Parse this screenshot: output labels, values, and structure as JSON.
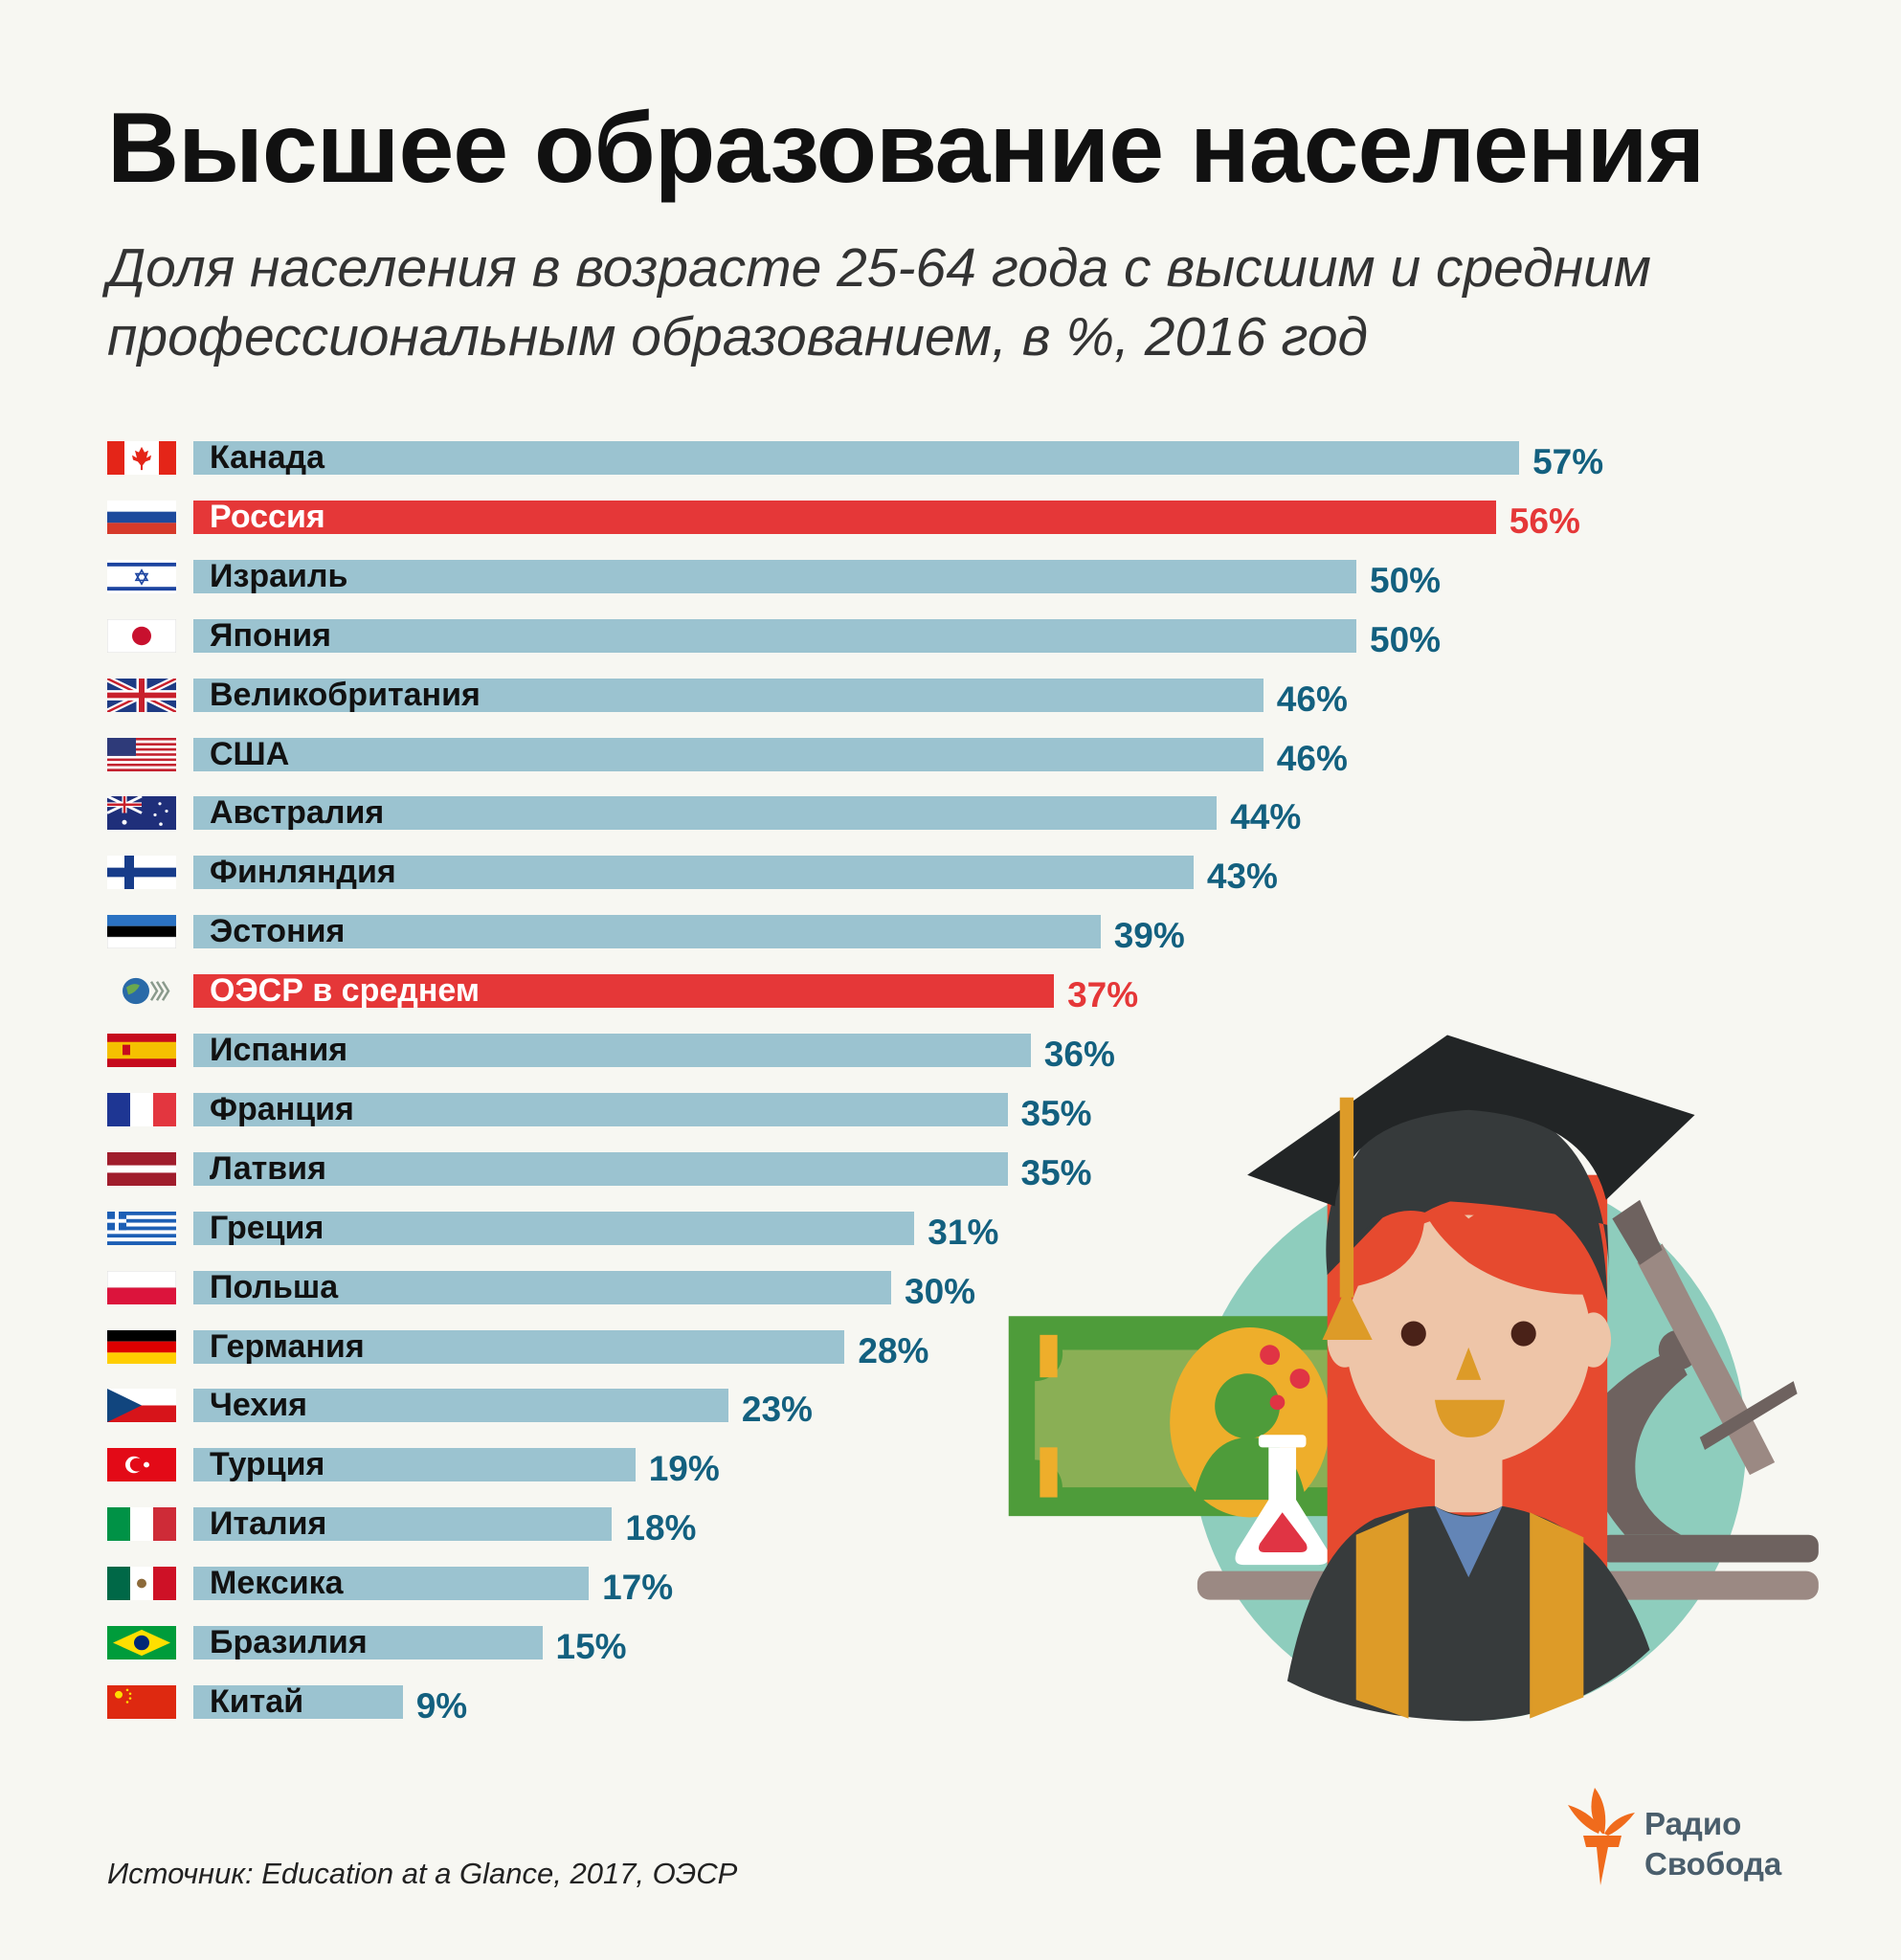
{
  "title": "Высшее образование населения",
  "subtitle_line1": "Доля населения в возрасте 25-64 года с высшим и средним",
  "subtitle_line2": "профессиональным образованием, в %, 2016 год",
  "source": "Источник: Education at a Glance, 2017, ОЭСР",
  "logo": {
    "line1": "Радио",
    "line2": "Свобода"
  },
  "colors": {
    "bar": "#9bc3d0",
    "highlight": "#e53738",
    "value_text": "#13607f",
    "background": "#f7f7f2"
  },
  "chart_data": {
    "type": "bar",
    "orientation": "horizontal",
    "title": "Высшее образование населения",
    "unit": "%",
    "xlim": [
      0,
      57
    ],
    "grid": false,
    "categories": [
      "Канада",
      "Россия",
      "Израиль",
      "Япония",
      "Великобритания",
      "США",
      "Австралия",
      "Финляндия",
      "Эстония",
      "ОЭСР в среднем",
      "Испания",
      "Франция",
      "Латвия",
      "Греция",
      "Польша",
      "Германия",
      "Чехия",
      "Турция",
      "Италия",
      "Мексика",
      "Бразилия",
      "Китай"
    ],
    "values": [
      57,
      56,
      50,
      50,
      46,
      46,
      44,
      43,
      39,
      37,
      36,
      35,
      35,
      31,
      30,
      28,
      23,
      19,
      18,
      17,
      15,
      9
    ],
    "value_labels": [
      "57%",
      "56%",
      "50%",
      "50%",
      "46%",
      "46%",
      "44%",
      "43%",
      "39%",
      "37%",
      "36%",
      "35%",
      "35%",
      "31%",
      "30%",
      "28%",
      "23%",
      "19%",
      "18%",
      "17%",
      "15%",
      "9%"
    ],
    "highlighted": [
      "Россия",
      "ОЭСР в среднем"
    ],
    "flags": [
      "flag-canada",
      "flag-russia",
      "flag-israel",
      "flag-japan",
      "flag-uk",
      "flag-usa",
      "flag-australia",
      "flag-finland",
      "flag-estonia",
      "logo-oecd",
      "flag-spain",
      "flag-france",
      "flag-latvia",
      "flag-greece",
      "flag-poland",
      "flag-germany",
      "flag-czech",
      "flag-turkey",
      "flag-italy",
      "flag-mexico",
      "flag-brazil",
      "flag-china"
    ]
  }
}
